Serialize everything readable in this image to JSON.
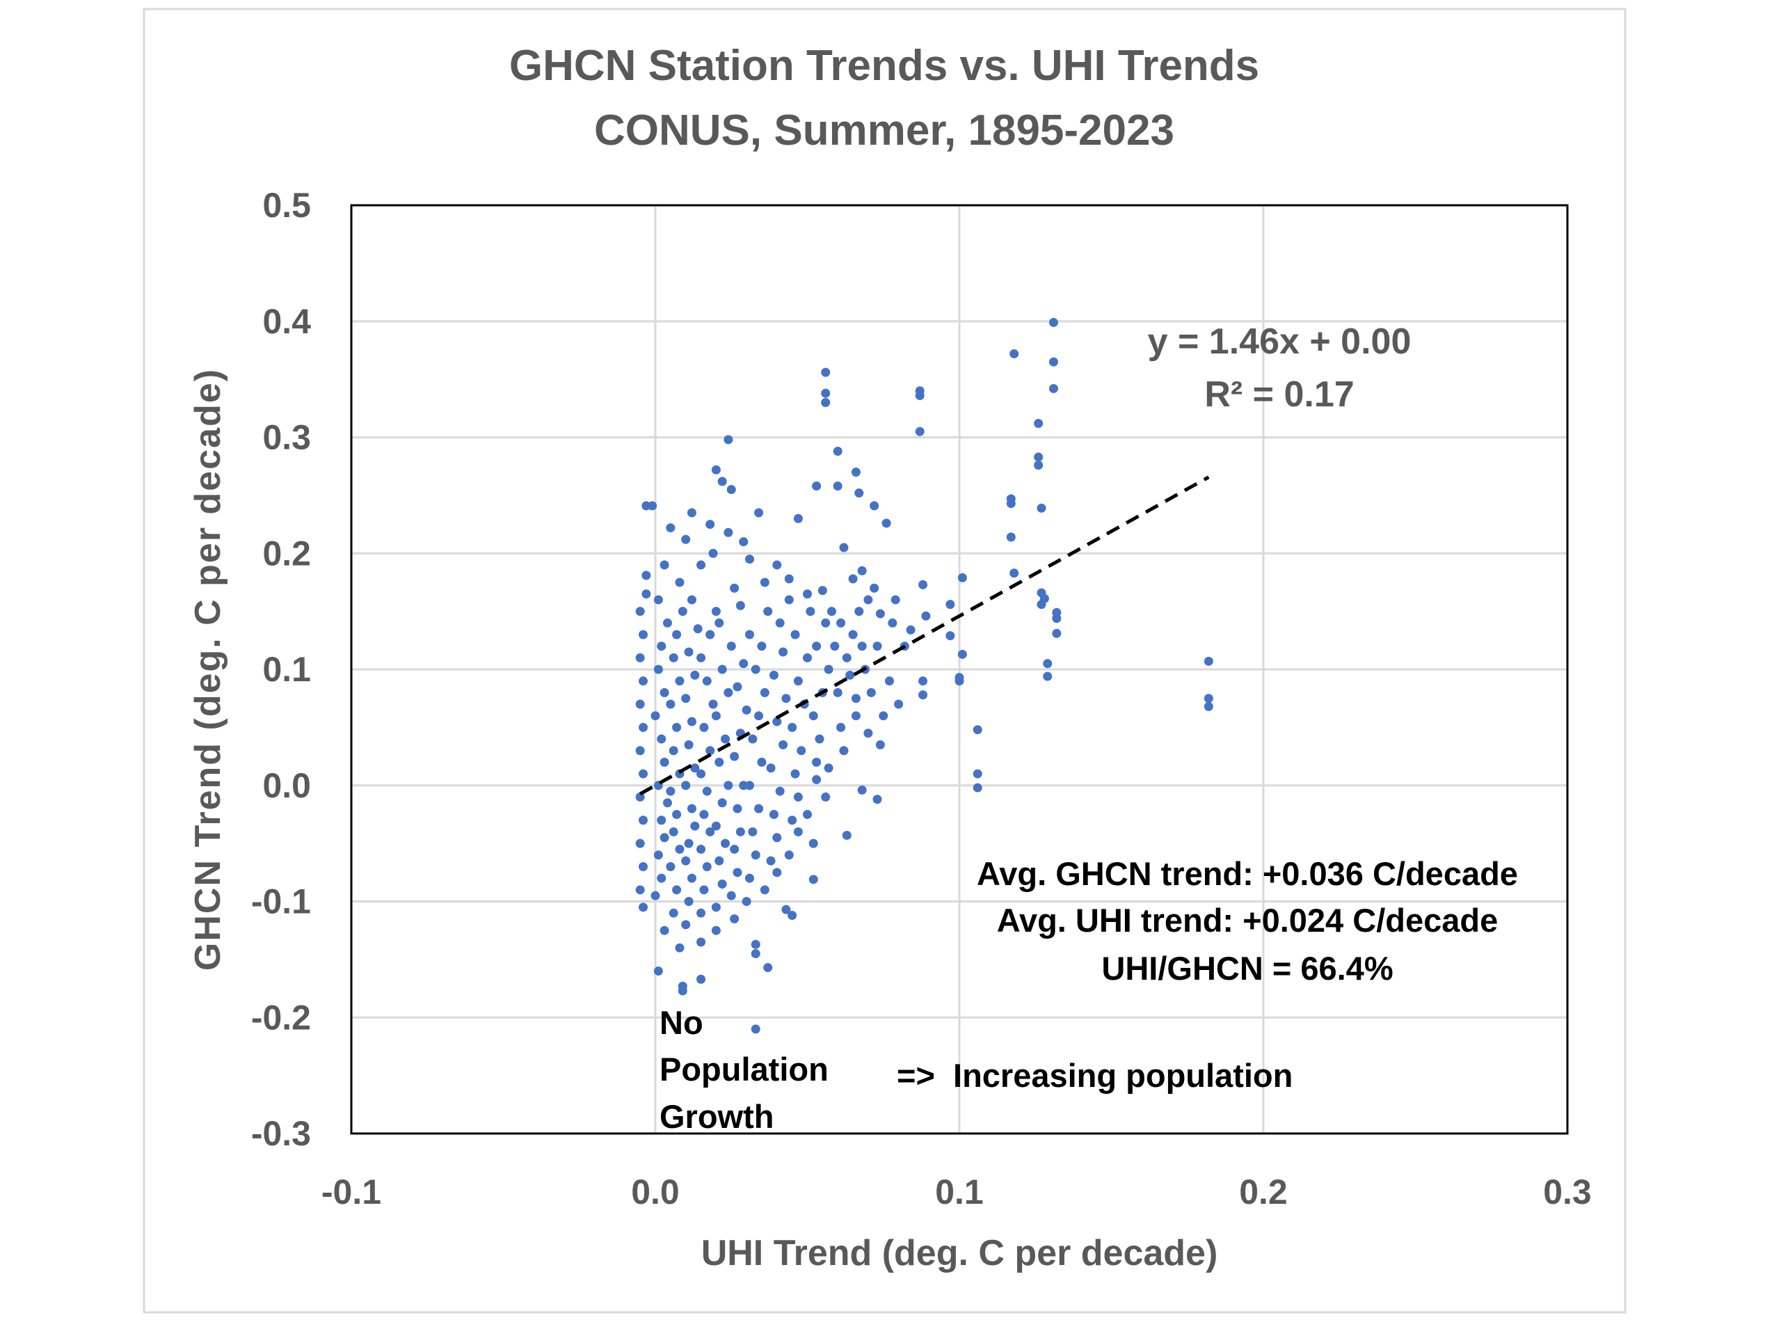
{
  "chart_data": {
    "type": "scatter",
    "title": [
      "GHCN Station Trends vs. UHI Trends",
      "CONUS, Summer, 1895-2023"
    ],
    "xlabel": "UHI Trend (deg. C per decade)",
    "ylabel": "GHCN Trend (deg. C per decade)",
    "xlim": [
      -0.1,
      0.3
    ],
    "ylim": [
      -0.3,
      0.5
    ],
    "xticks": [
      "-0.1",
      "0.0",
      "0.1",
      "0.2",
      "0.3"
    ],
    "yticks": [
      "0.5",
      "0.4",
      "0.3",
      "0.2",
      "0.1",
      "0.0",
      "-0.1",
      "-0.2",
      "-0.3"
    ],
    "grid": true,
    "marker_color": "#4472C4",
    "trendline": {
      "slope": 1.46,
      "intercept": 0.0,
      "x_range": [
        -0.005,
        0.182
      ],
      "style": "dashed",
      "color": "#000000"
    },
    "equation": "y = 1.46x + 0.00",
    "r_squared": "R² = 0.17",
    "annotations": {
      "avg_ghcn": "Avg. GHCN trend: +0.036 C/decade",
      "avg_uhi": "Avg. UHI trend: +0.024 C/decade",
      "ratio": "UHI/GHCN  = 66.4%",
      "no_growth": [
        "No",
        "Population",
        "Growth"
      ],
      "increasing": "=>  Increasing population"
    },
    "points": [
      [
        0.131,
        0.399
      ],
      [
        0.131,
        0.365
      ],
      [
        0.131,
        0.342
      ],
      [
        0.118,
        0.372
      ],
      [
        0.126,
        0.312
      ],
      [
        0.126,
        0.283
      ],
      [
        0.126,
        0.276
      ],
      [
        0.127,
        0.239
      ],
      [
        0.117,
        0.247
      ],
      [
        0.117,
        0.243
      ],
      [
        0.117,
        0.214
      ],
      [
        0.118,
        0.183
      ],
      [
        0.127,
        0.166
      ],
      [
        0.128,
        0.161
      ],
      [
        0.127,
        0.156
      ],
      [
        0.132,
        0.149
      ],
      [
        0.132,
        0.144
      ],
      [
        0.132,
        0.131
      ],
      [
        0.129,
        0.105
      ],
      [
        0.129,
        0.094
      ],
      [
        0.182,
        0.107
      ],
      [
        0.182,
        0.075
      ],
      [
        0.182,
        0.068
      ],
      [
        0.106,
        0.048
      ],
      [
        0.106,
        0.01
      ],
      [
        0.106,
        -0.002
      ],
      [
        0.101,
        0.179
      ],
      [
        0.1,
        0.093
      ],
      [
        0.1,
        0.09
      ],
      [
        0.101,
        0.113
      ],
      [
        0.097,
        0.129
      ],
      [
        0.097,
        0.156
      ],
      [
        0.087,
        0.34
      ],
      [
        0.087,
        0.336
      ],
      [
        0.087,
        0.305
      ],
      [
        0.056,
        0.356
      ],
      [
        0.056,
        0.338
      ],
      [
        0.056,
        0.33
      ],
      [
        0.024,
        0.298
      ],
      [
        0.06,
        0.288
      ],
      [
        0.066,
        0.27
      ],
      [
        0.06,
        0.258
      ],
      [
        0.067,
        0.252
      ],
      [
        0.072,
        0.241
      ],
      [
        0.076,
        0.226
      ],
      [
        0.053,
        0.258
      ],
      [
        0.047,
        0.23
      ],
      [
        0.033,
        -0.21
      ],
      [
        0.009,
        -0.173
      ],
      [
        0.009,
        -0.177
      ],
      [
        0.015,
        -0.167
      ],
      [
        0.001,
        -0.16
      ],
      [
        0.033,
        -0.137
      ],
      [
        0.033,
        -0.145
      ],
      [
        0.037,
        -0.157
      ],
      [
        0.043,
        -0.107
      ],
      [
        0.045,
        -0.112
      ],
      [
        0.052,
        -0.081
      ],
      [
        0.063,
        -0.043
      ],
      [
        0.073,
        -0.012
      ],
      [
        0.068,
        -0.004
      ],
      [
        -0.003,
        0.241
      ],
      [
        -0.001,
        0.241
      ],
      [
        -0.003,
        0.181
      ],
      [
        0.088,
        0.09
      ],
      [
        0.088,
        0.078
      ],
      [
        0.08,
        0.07
      ],
      [
        0.084,
        0.134
      ],
      [
        0.088,
        0.173
      ],
      [
        0.089,
        0.146
      ],
      [
        0.02,
        0.272
      ],
      [
        0.022,
        0.262
      ],
      [
        0.025,
        0.255
      ],
      [
        0.034,
        0.235
      ],
      [
        0.018,
        0.225
      ],
      [
        0.029,
        0.21
      ],
      [
        0.012,
        0.235
      ],
      [
        0.005,
        0.222
      ],
      [
        0.01,
        0.212
      ],
      [
        0.024,
        0.218
      ],
      [
        0.031,
        0.195
      ],
      [
        0.04,
        0.19
      ],
      [
        0.044,
        0.178
      ],
      [
        0.05,
        0.165
      ],
      [
        0.055,
        0.168
      ],
      [
        0.058,
        0.15
      ],
      [
        0.062,
        0.205
      ],
      [
        0.065,
        0.178
      ],
      [
        0.07,
        0.16
      ],
      [
        0.074,
        0.148
      ],
      [
        0.078,
        0.14
      ],
      [
        0.082,
        0.12
      ],
      [
        0.068,
        0.12
      ],
      [
        0.064,
        0.095
      ],
      [
        0.06,
        0.08
      ],
      [
        0.066,
        0.06
      ],
      [
        0.07,
        0.045
      ],
      [
        0.074,
        0.035
      ],
      [
        0.062,
        0.03
      ],
      [
        0.057,
        0.015
      ],
      [
        0.053,
        0.005
      ],
      [
        0.056,
        -0.01
      ],
      [
        0.05,
        -0.025
      ],
      [
        0.047,
        -0.04
      ],
      [
        0.052,
        -0.05
      ],
      [
        0.044,
        -0.06
      ],
      [
        0.04,
        -0.075
      ],
      [
        0.036,
        -0.09
      ],
      [
        0.03,
        -0.1
      ],
      [
        0.026,
        -0.115
      ],
      [
        0.02,
        -0.125
      ],
      [
        0.015,
        -0.135
      ],
      [
        0.008,
        -0.14
      ],
      [
        0.003,
        -0.125
      ],
      [
        -0.004,
        -0.105
      ],
      [
        -0.005,
        -0.09
      ],
      [
        -0.004,
        -0.07
      ],
      [
        -0.005,
        -0.05
      ],
      [
        -0.004,
        -0.03
      ],
      [
        -0.005,
        -0.01
      ],
      [
        -0.004,
        0.01
      ],
      [
        -0.005,
        0.03
      ],
      [
        -0.004,
        0.05
      ],
      [
        -0.005,
        0.07
      ],
      [
        -0.004,
        0.09
      ],
      [
        -0.005,
        0.11
      ],
      [
        -0.004,
        0.13
      ],
      [
        -0.005,
        0.15
      ],
      [
        -0.003,
        0.165
      ],
      [
        0.0,
        -0.095
      ],
      [
        0.002,
        -0.08
      ],
      [
        0.001,
        -0.06
      ],
      [
        0.003,
        -0.045
      ],
      [
        0.002,
        -0.03
      ],
      [
        0.004,
        -0.015
      ],
      [
        0.001,
        0.0
      ],
      [
        0.003,
        0.02
      ],
      [
        0.002,
        0.04
      ],
      [
        0.0,
        0.06
      ],
      [
        0.003,
        0.08
      ],
      [
        0.001,
        0.1
      ],
      [
        0.002,
        0.12
      ],
      [
        0.004,
        0.14
      ],
      [
        0.001,
        0.16
      ],
      [
        0.003,
        0.19
      ],
      [
        0.006,
        -0.11
      ],
      [
        0.007,
        -0.09
      ],
      [
        0.005,
        -0.07
      ],
      [
        0.008,
        -0.055
      ],
      [
        0.006,
        -0.04
      ],
      [
        0.007,
        -0.025
      ],
      [
        0.005,
        -0.005
      ],
      [
        0.008,
        0.01
      ],
      [
        0.006,
        0.03
      ],
      [
        0.007,
        0.05
      ],
      [
        0.005,
        0.07
      ],
      [
        0.008,
        0.09
      ],
      [
        0.006,
        0.11
      ],
      [
        0.007,
        0.13
      ],
      [
        0.009,
        0.15
      ],
      [
        0.008,
        0.175
      ],
      [
        0.01,
        -0.12
      ],
      [
        0.011,
        -0.1
      ],
      [
        0.012,
        -0.08
      ],
      [
        0.01,
        -0.065
      ],
      [
        0.011,
        -0.05
      ],
      [
        0.013,
        -0.035
      ],
      [
        0.012,
        -0.02
      ],
      [
        0.01,
        0.0
      ],
      [
        0.013,
        0.015
      ],
      [
        0.011,
        0.035
      ],
      [
        0.012,
        0.055
      ],
      [
        0.01,
        0.075
      ],
      [
        0.013,
        0.095
      ],
      [
        0.011,
        0.115
      ],
      [
        0.014,
        0.135
      ],
      [
        0.012,
        0.16
      ],
      [
        0.015,
        0.19
      ],
      [
        0.015,
        -0.11
      ],
      [
        0.016,
        -0.09
      ],
      [
        0.017,
        -0.07
      ],
      [
        0.015,
        -0.055
      ],
      [
        0.018,
        -0.04
      ],
      [
        0.016,
        -0.025
      ],
      [
        0.017,
        -0.005
      ],
      [
        0.015,
        0.01
      ],
      [
        0.018,
        0.03
      ],
      [
        0.016,
        0.05
      ],
      [
        0.019,
        0.07
      ],
      [
        0.017,
        0.09
      ],
      [
        0.015,
        0.11
      ],
      [
        0.018,
        0.13
      ],
      [
        0.02,
        0.15
      ],
      [
        0.019,
        0.2
      ],
      [
        0.02,
        -0.105
      ],
      [
        0.022,
        -0.085
      ],
      [
        0.021,
        -0.065
      ],
      [
        0.023,
        -0.05
      ],
      [
        0.02,
        -0.035
      ],
      [
        0.022,
        -0.015
      ],
      [
        0.024,
        0.0
      ],
      [
        0.021,
        0.02
      ],
      [
        0.023,
        0.04
      ],
      [
        0.02,
        0.06
      ],
      [
        0.024,
        0.08
      ],
      [
        0.022,
        0.1
      ],
      [
        0.025,
        0.12
      ],
      [
        0.021,
        0.14
      ],
      [
        0.026,
        0.17
      ],
      [
        0.025,
        -0.095
      ],
      [
        0.027,
        -0.075
      ],
      [
        0.026,
        -0.055
      ],
      [
        0.028,
        -0.04
      ],
      [
        0.027,
        -0.02
      ],
      [
        0.029,
        0.0
      ],
      [
        0.026,
        0.025
      ],
      [
        0.028,
        0.045
      ],
      [
        0.03,
        0.065
      ],
      [
        0.027,
        0.085
      ],
      [
        0.029,
        0.105
      ],
      [
        0.031,
        0.13
      ],
      [
        0.028,
        0.155
      ],
      [
        0.031,
        -0.08
      ],
      [
        0.033,
        -0.06
      ],
      [
        0.032,
        -0.04
      ],
      [
        0.034,
        -0.02
      ],
      [
        0.031,
        0.0
      ],
      [
        0.035,
        0.02
      ],
      [
        0.032,
        0.04
      ],
      [
        0.034,
        0.06
      ],
      [
        0.036,
        0.08
      ],
      [
        0.033,
        0.1
      ],
      [
        0.035,
        0.12
      ],
      [
        0.037,
        0.15
      ],
      [
        0.036,
        0.175
      ],
      [
        0.038,
        -0.065
      ],
      [
        0.04,
        -0.045
      ],
      [
        0.039,
        -0.025
      ],
      [
        0.041,
        -0.005
      ],
      [
        0.038,
        0.015
      ],
      [
        0.042,
        0.035
      ],
      [
        0.04,
        0.055
      ],
      [
        0.043,
        0.075
      ],
      [
        0.039,
        0.095
      ],
      [
        0.042,
        0.115
      ],
      [
        0.041,
        0.14
      ],
      [
        0.044,
        0.16
      ],
      [
        0.045,
        -0.03
      ],
      [
        0.047,
        -0.01
      ],
      [
        0.046,
        0.01
      ],
      [
        0.048,
        0.03
      ],
      [
        0.045,
        0.05
      ],
      [
        0.049,
        0.07
      ],
      [
        0.047,
        0.09
      ],
      [
        0.05,
        0.11
      ],
      [
        0.046,
        0.13
      ],
      [
        0.051,
        0.15
      ],
      [
        0.053,
        0.02
      ],
      [
        0.054,
        0.04
      ],
      [
        0.052,
        0.06
      ],
      [
        0.055,
        0.08
      ],
      [
        0.057,
        0.1
      ],
      [
        0.053,
        0.12
      ],
      [
        0.056,
        0.14
      ],
      [
        0.059,
        0.12
      ],
      [
        0.061,
        0.14
      ],
      [
        0.063,
        0.11
      ],
      [
        0.065,
        0.13
      ],
      [
        0.067,
        0.15
      ],
      [
        0.069,
        0.1
      ],
      [
        0.071,
        0.08
      ],
      [
        0.073,
        0.12
      ],
      [
        0.075,
        0.06
      ],
      [
        0.077,
        0.09
      ],
      [
        0.079,
        0.16
      ],
      [
        0.072,
        0.17
      ],
      [
        0.068,
        0.185
      ],
      [
        0.066,
        0.075
      ],
      [
        0.061,
        0.05
      ]
    ]
  }
}
